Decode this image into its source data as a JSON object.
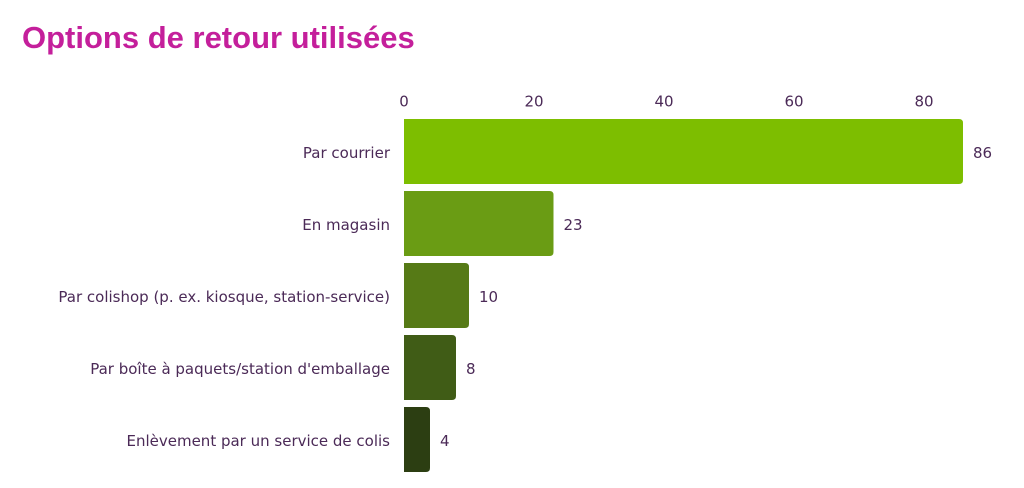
{
  "chart_data": {
    "type": "bar",
    "orientation": "horizontal",
    "title": "Options de retour utilisées",
    "categories": [
      "Par courrier",
      "En magasin",
      "Par colishop (p. ex. kiosque, station-service)",
      "Par boîte à paquets/station d'emballage",
      "Enlèvement par un service de colis"
    ],
    "values": [
      86,
      23,
      10,
      8,
      4
    ],
    "colors": [
      "#7dbe00",
      "#6a9c14",
      "#567a16",
      "#405c16",
      "#2c3e12"
    ],
    "xlim": [
      0,
      86
    ],
    "xticks": [
      0,
      20,
      40,
      60,
      80
    ],
    "grid": false
  }
}
